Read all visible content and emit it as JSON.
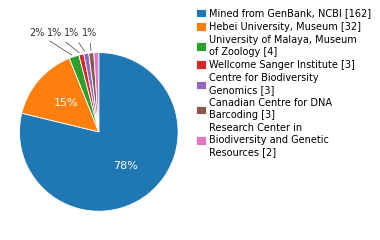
{
  "chart_data": {
    "type": "pie",
    "categories": [
      "Mined from GenBank, NCBI [162]",
      "Hebei University, Museum [32]",
      "University of Malaya, Museum\nof Zoology [4]",
      "Wellcome Sanger Institute [3]",
      "Centre for Biodiversity\nGenomics [3]",
      "Canadian Centre for DNA\nBarcoding [3]",
      "Research Center in\nBiodiversity and Genetic\nResources [2]"
    ],
    "values": [
      78,
      15,
      2,
      1,
      1,
      1,
      1
    ],
    "value_labels": [
      "78%",
      "15%",
      "2%",
      "1%",
      "1%",
      "1%",
      null
    ],
    "data_labels": true,
    "legend": "upper left"
  }
}
